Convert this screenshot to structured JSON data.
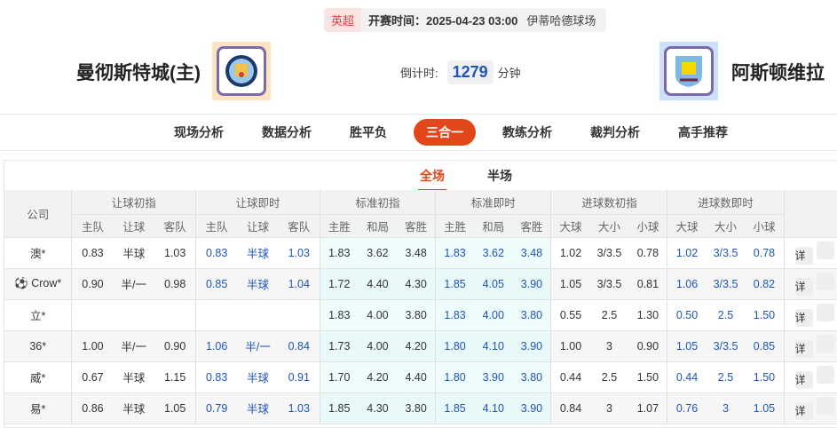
{
  "match": {
    "league": "英超",
    "time_label": "开赛时间：",
    "time": "2025-04-23 03:00",
    "venue": "伊蒂哈德球场"
  },
  "home": {
    "name": "曼彻斯特城(主)",
    "logo_bg": "#fde3c4"
  },
  "away": {
    "name": "阿斯顿维拉",
    "logo_bg": "#cde0fb"
  },
  "countdown": {
    "label": "倒计时:",
    "value": "1279",
    "unit": "分钟"
  },
  "nav": [
    "现场分析",
    "数据分析",
    "胜平负",
    "三合一",
    "教练分析",
    "裁判分析",
    "高手推荐"
  ],
  "nav_active": "三合一",
  "subtabs": [
    "全场",
    "半场"
  ],
  "accent": "#e2471a",
  "table": {
    "company_header": "公司",
    "groups": [
      "让球初指",
      "让球即时",
      "标准初指",
      "标准即时",
      "进球数初指",
      "进球数即时"
    ],
    "subheaders": [
      [
        "主队",
        "让球",
        "客队"
      ],
      [
        "主队",
        "让球",
        "客队"
      ],
      [
        "主胜",
        "和局",
        "客胜"
      ],
      [
        "主胜",
        "和局",
        "客胜"
      ],
      [
        "大球",
        "大小",
        "小球"
      ],
      [
        "大球",
        "大小",
        "小球"
      ]
    ],
    "detail_label": "详",
    "rows": [
      {
        "company": "澳*",
        "icon": "",
        "v": [
          "0.83",
          "半球",
          "1.03",
          "0.83",
          "半球",
          "1.03",
          "1.83",
          "3.62",
          "3.48",
          "1.83",
          "3.62",
          "3.48",
          "1.02",
          "3/3.5",
          "0.78",
          "1.02",
          "3/3.5",
          "0.78"
        ]
      },
      {
        "company": "Crow*",
        "icon": "soccer-ball",
        "v": [
          "0.90",
          "半/一",
          "0.98",
          "0.85",
          "半球",
          "1.04",
          "1.72",
          "4.40",
          "4.30",
          "1.85",
          "4.05",
          "3.90",
          "1.05",
          "3/3.5",
          "0.81",
          "1.06",
          "3/3.5",
          "0.82"
        ]
      },
      {
        "company": "立*",
        "icon": "",
        "v": [
          "",
          "",
          "",
          "",
          "",
          "",
          "1.83",
          "4.00",
          "3.80",
          "1.83",
          "4.00",
          "3.80",
          "0.55",
          "2.5",
          "1.30",
          "0.50",
          "2.5",
          "1.50"
        ]
      },
      {
        "company": "36*",
        "icon": "",
        "v": [
          "1.00",
          "半/一",
          "0.90",
          "1.06",
          "半/一",
          "0.84",
          "1.73",
          "4.00",
          "4.20",
          "1.80",
          "4.10",
          "3.90",
          "1.00",
          "3",
          "0.90",
          "1.05",
          "3/3.5",
          "0.85"
        ]
      },
      {
        "company": "威*",
        "icon": "",
        "v": [
          "0.67",
          "半球",
          "1.15",
          "0.83",
          "半球",
          "0.91",
          "1.70",
          "4.20",
          "4.40",
          "1.80",
          "3.90",
          "3.80",
          "0.44",
          "2.5",
          "1.50",
          "0.44",
          "2.5",
          "1.50"
        ]
      },
      {
        "company": "易*",
        "icon": "",
        "v": [
          "0.86",
          "半球",
          "1.05",
          "0.79",
          "半球",
          "1.03",
          "1.85",
          "4.30",
          "3.80",
          "1.85",
          "4.10",
          "3.90",
          "0.84",
          "3",
          "1.07",
          "0.76",
          "3",
          "1.05"
        ]
      }
    ]
  }
}
